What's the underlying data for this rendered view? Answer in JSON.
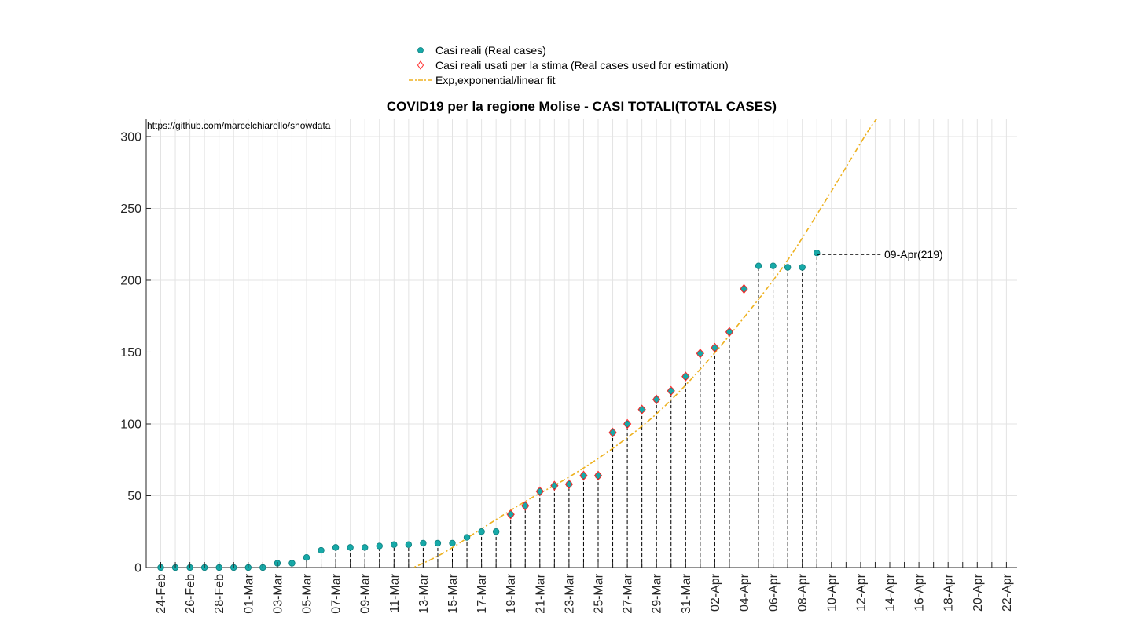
{
  "chart_data": {
    "type": "scatter",
    "title": "COVID19 per la regione Molise - CASI TOTALI(TOTAL CASES)",
    "source_note": "https://github.com/marcelchiarello/showdata",
    "xlabel": "",
    "ylabel": "",
    "ylim": [
      0,
      312
    ],
    "y_ticks": [
      0,
      50,
      100,
      150,
      200,
      250,
      300
    ],
    "x_start_date": "2020-02-24",
    "x_tick_labels": [
      "24-Feb",
      "26-Feb",
      "28-Feb",
      "01-Mar",
      "03-Mar",
      "05-Mar",
      "07-Mar",
      "09-Mar",
      "11-Mar",
      "13-Mar",
      "15-Mar",
      "17-Mar",
      "19-Mar",
      "21-Mar",
      "23-Mar",
      "25-Mar",
      "27-Mar",
      "29-Mar",
      "31-Mar",
      "02-Apr",
      "04-Apr",
      "06-Apr",
      "08-Apr",
      "10-Apr",
      "12-Apr",
      "14-Apr",
      "16-Apr",
      "18-Apr",
      "20-Apr",
      "22-Apr"
    ],
    "grid": true,
    "legend_position": "top-center",
    "legend": [
      {
        "label": "Casi reali (Real cases)",
        "marker": "circle"
      },
      {
        "label": "Casi reali usati per la stima (Real cases used for estimation)",
        "marker": "diamond"
      },
      {
        "label": "Exp,exponential/linear fit",
        "marker": "dashdot-line"
      }
    ],
    "series": [
      {
        "name": "Casi reali (Real cases)",
        "color": "#17a9a8",
        "x": [
          "2020-02-24",
          "2020-02-25",
          "2020-02-26",
          "2020-02-27",
          "2020-02-28",
          "2020-02-29",
          "2020-03-01",
          "2020-03-02",
          "2020-03-03",
          "2020-03-04",
          "2020-03-05",
          "2020-03-06",
          "2020-03-07",
          "2020-03-08",
          "2020-03-09",
          "2020-03-10",
          "2020-03-11",
          "2020-03-12",
          "2020-03-13",
          "2020-03-14",
          "2020-03-15",
          "2020-03-16",
          "2020-03-17",
          "2020-03-18",
          "2020-03-19",
          "2020-03-20",
          "2020-03-21",
          "2020-03-22",
          "2020-03-23",
          "2020-03-24",
          "2020-03-25",
          "2020-03-26",
          "2020-03-27",
          "2020-03-28",
          "2020-03-29",
          "2020-03-30",
          "2020-03-31",
          "2020-04-01",
          "2020-04-02",
          "2020-04-03",
          "2020-04-04",
          "2020-04-05",
          "2020-04-06",
          "2020-04-07",
          "2020-04-08",
          "2020-04-09"
        ],
        "values": [
          0,
          0,
          0,
          0,
          0,
          0,
          0,
          0,
          3,
          3,
          7,
          12,
          14,
          14,
          14,
          15,
          16,
          16,
          17,
          17,
          17,
          21,
          25,
          25,
          37,
          43,
          53,
          57,
          58,
          64,
          64,
          94,
          100,
          110,
          117,
          123,
          133,
          149,
          153,
          164,
          194,
          210,
          210,
          209,
          209,
          219
        ]
      },
      {
        "name": "Casi reali usati per la stima (Real cases used for estimation)",
        "color": "#ff2a2a",
        "x": [
          "2020-03-19",
          "2020-03-20",
          "2020-03-21",
          "2020-03-22",
          "2020-03-23",
          "2020-03-24",
          "2020-03-25",
          "2020-03-26",
          "2020-03-27",
          "2020-03-28",
          "2020-03-29",
          "2020-03-30",
          "2020-03-31",
          "2020-04-01",
          "2020-04-02",
          "2020-04-03",
          "2020-04-04"
        ],
        "values": [
          37,
          43,
          53,
          57,
          58,
          64,
          64,
          94,
          100,
          110,
          117,
          123,
          133,
          149,
          153,
          164,
          194
        ]
      },
      {
        "name": "Exp,exponential/linear fit",
        "color": "#edb120",
        "x": [
          "2020-03-08",
          "2020-03-11",
          "2020-03-14",
          "2020-03-17",
          "2020-03-20",
          "2020-03-23",
          "2020-03-26",
          "2020-03-29",
          "2020-04-01",
          "2020-04-04",
          "2020-04-07",
          "2020-04-10",
          "2020-04-13",
          "2020-04-14"
        ],
        "values": [
          -12,
          -5,
          8,
          27,
          46,
          63,
          83,
          107,
          138,
          174,
          214,
          262,
          311,
          315
        ]
      }
    ],
    "annotation": {
      "text": "09-Apr(219)",
      "x": "2020-04-09",
      "y": 219
    }
  }
}
